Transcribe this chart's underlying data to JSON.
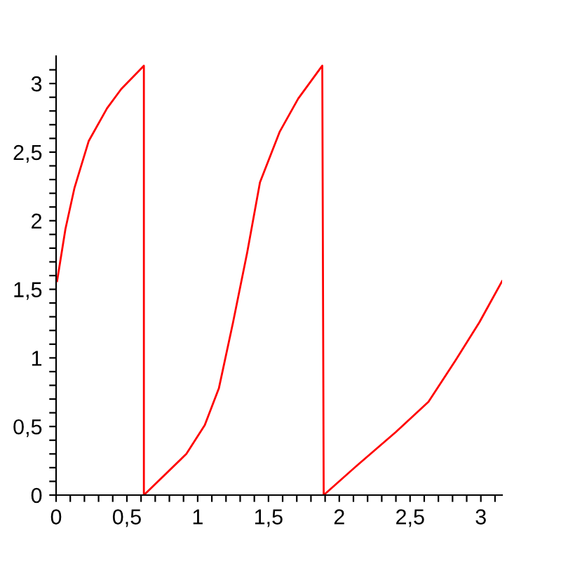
{
  "chart_data": {
    "type": "line",
    "x": [
      0.007,
      0.066,
      0.13,
      0.23,
      0.36,
      0.46,
      0.62,
      0.62,
      0.92,
      1.05,
      1.15,
      1.25,
      1.35,
      1.44,
      1.58,
      1.71,
      1.88,
      1.89,
      2.13,
      2.4,
      2.63,
      2.82,
      2.99,
      3.15
    ],
    "series": [
      {
        "color": "#ff0000",
        "values": [
          1.56,
          1.94,
          2.24,
          2.58,
          2.82,
          2.96,
          3.13,
          0,
          0.3,
          0.51,
          0.78,
          1.26,
          1.77,
          2.28,
          2.65,
          2.89,
          3.13,
          0,
          0.22,
          0.46,
          0.68,
          0.98,
          1.26,
          1.56
        ]
      }
    ],
    "xlim": [
      0,
      3.15
    ],
    "ylim": [
      0,
      3.2
    ],
    "xticks": [
      {
        "value": 0,
        "label": "0"
      },
      {
        "value": 0.1,
        "label": null
      },
      {
        "value": 0.2,
        "label": null
      },
      {
        "value": 0.3,
        "label": null
      },
      {
        "value": 0.4,
        "label": null
      },
      {
        "value": 0.5,
        "label": "0,5"
      },
      {
        "value": 0.6,
        "label": null
      },
      {
        "value": 0.7,
        "label": null
      },
      {
        "value": 0.8,
        "label": null
      },
      {
        "value": 0.9,
        "label": null
      },
      {
        "value": 1,
        "label": "1"
      },
      {
        "value": 1.1,
        "label": null
      },
      {
        "value": 1.2,
        "label": null
      },
      {
        "value": 1.3,
        "label": null
      },
      {
        "value": 1.4,
        "label": null
      },
      {
        "value": 1.5,
        "label": "1,5"
      },
      {
        "value": 1.6,
        "label": null
      },
      {
        "value": 1.7,
        "label": null
      },
      {
        "value": 1.8,
        "label": null
      },
      {
        "value": 1.9,
        "label": null
      },
      {
        "value": 2,
        "label": "2"
      },
      {
        "value": 2.1,
        "label": null
      },
      {
        "value": 2.2,
        "label": null
      },
      {
        "value": 2.3,
        "label": null
      },
      {
        "value": 2.4,
        "label": null
      },
      {
        "value": 2.5,
        "label": "2,5"
      },
      {
        "value": 2.6,
        "label": null
      },
      {
        "value": 2.7,
        "label": null
      },
      {
        "value": 2.8,
        "label": null
      },
      {
        "value": 2.9,
        "label": null
      },
      {
        "value": 3,
        "label": "3"
      },
      {
        "value": 3.1,
        "label": null
      }
    ],
    "yticks": [
      {
        "value": 0,
        "label": "0"
      },
      {
        "value": 0.1,
        "label": null
      },
      {
        "value": 0.2,
        "label": null
      },
      {
        "value": 0.3,
        "label": null
      },
      {
        "value": 0.4,
        "label": null
      },
      {
        "value": 0.5,
        "label": "0,5"
      },
      {
        "value": 0.6,
        "label": null
      },
      {
        "value": 0.7,
        "label": null
      },
      {
        "value": 0.8,
        "label": null
      },
      {
        "value": 0.9,
        "label": null
      },
      {
        "value": 1,
        "label": "1"
      },
      {
        "value": 1.1,
        "label": null
      },
      {
        "value": 1.2,
        "label": null
      },
      {
        "value": 1.3,
        "label": null
      },
      {
        "value": 1.4,
        "label": null
      },
      {
        "value": 1.5,
        "label": "1,5"
      },
      {
        "value": 1.6,
        "label": null
      },
      {
        "value": 1.7,
        "label": null
      },
      {
        "value": 1.8,
        "label": null
      },
      {
        "value": 1.9,
        "label": null
      },
      {
        "value": 2,
        "label": "2"
      },
      {
        "value": 2.1,
        "label": null
      },
      {
        "value": 2.2,
        "label": null
      },
      {
        "value": 2.3,
        "label": null
      },
      {
        "value": 2.4,
        "label": null
      },
      {
        "value": 2.5,
        "label": "2,5"
      },
      {
        "value": 2.6,
        "label": null
      },
      {
        "value": 2.7,
        "label": null
      },
      {
        "value": 2.8,
        "label": null
      },
      {
        "value": 2.9,
        "label": null
      },
      {
        "value": 3,
        "label": "3"
      },
      {
        "value": 3.1,
        "label": null
      }
    ]
  }
}
